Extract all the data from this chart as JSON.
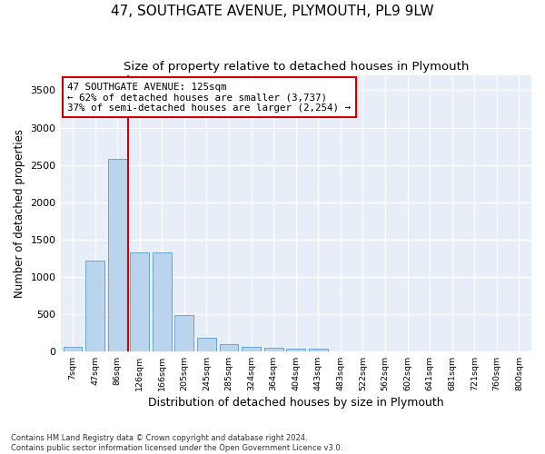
{
  "title": "47, SOUTHGATE AVENUE, PLYMOUTH, PL9 9LW",
  "subtitle": "Size of property relative to detached houses in Plymouth",
  "xlabel": "Distribution of detached houses by size in Plymouth",
  "ylabel": "Number of detached properties",
  "bar_labels": [
    "7sqm",
    "47sqm",
    "86sqm",
    "126sqm",
    "166sqm",
    "205sqm",
    "245sqm",
    "285sqm",
    "324sqm",
    "364sqm",
    "404sqm",
    "443sqm",
    "483sqm",
    "522sqm",
    "562sqm",
    "602sqm",
    "641sqm",
    "681sqm",
    "721sqm",
    "760sqm",
    "800sqm"
  ],
  "bar_values": [
    55,
    1210,
    2580,
    1330,
    1330,
    490,
    185,
    95,
    55,
    50,
    30,
    30,
    0,
    0,
    0,
    0,
    0,
    0,
    0,
    0,
    0
  ],
  "bar_color": "#bad4ee",
  "bar_edge_color": "#5a9ac9",
  "vline_color": "#cc0000",
  "annotation_text": "47 SOUTHGATE AVENUE: 125sqm\n← 62% of detached houses are smaller (3,737)\n37% of semi-detached houses are larger (2,254) →",
  "annotation_box_color": "#cc0000",
  "ylim": [
    0,
    3700
  ],
  "yticks": [
    0,
    500,
    1000,
    1500,
    2000,
    2500,
    3000,
    3500
  ],
  "background_color": "#e8eef8",
  "grid_color": "#ffffff",
  "footnote": "Contains HM Land Registry data © Crown copyright and database right 2024.\nContains public sector information licensed under the Open Government Licence v3.0.",
  "title_fontsize": 11,
  "subtitle_fontsize": 9.5,
  "xlabel_fontsize": 9,
  "ylabel_fontsize": 8.5
}
